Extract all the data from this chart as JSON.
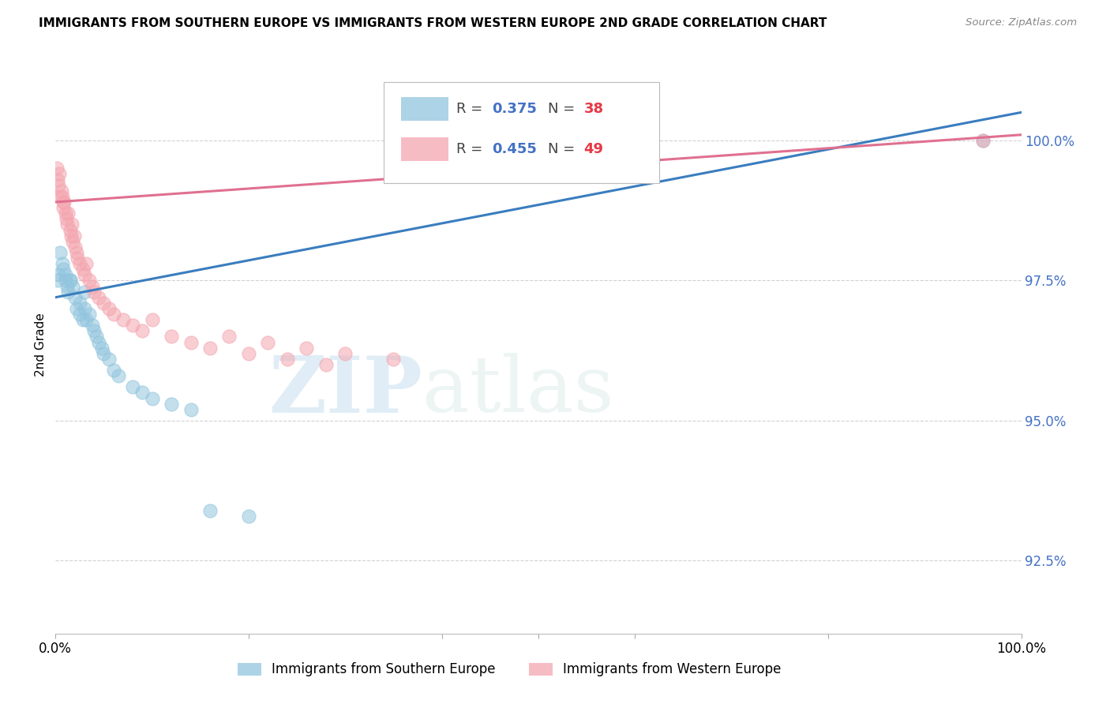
{
  "title": "IMMIGRANTS FROM SOUTHERN EUROPE VS IMMIGRANTS FROM WESTERN EUROPE 2ND GRADE CORRELATION CHART",
  "source": "Source: ZipAtlas.com",
  "ylabel": "2nd Grade",
  "y_ticks": [
    92.5,
    95.0,
    97.5,
    100.0
  ],
  "y_tick_labels": [
    "92.5%",
    "95.0%",
    "97.5%",
    "100.0%"
  ],
  "xlim": [
    0.0,
    1.0
  ],
  "ylim": [
    91.2,
    101.5
  ],
  "legend_blue_R": "0.375",
  "legend_blue_N": "38",
  "legend_pink_R": "0.455",
  "legend_pink_N": "49",
  "blue_label": "Immigrants from Southern Europe",
  "pink_label": "Immigrants from Western Europe",
  "blue_color": "#92c5de",
  "pink_color": "#f4a6b0",
  "blue_line_color": "#3a7dbf",
  "pink_line_color": "#e07090",
  "watermark_zip": "ZIP",
  "watermark_atlas": "atlas",
  "blue_scatter_x": [
    0.002,
    0.003,
    0.005,
    0.007,
    0.008,
    0.01,
    0.01,
    0.012,
    0.013,
    0.015,
    0.015,
    0.018,
    0.02,
    0.022,
    0.025,
    0.025,
    0.028,
    0.03,
    0.03,
    0.032,
    0.035,
    0.038,
    0.04,
    0.042,
    0.045,
    0.048,
    0.05,
    0.055,
    0.06,
    0.065,
    0.08,
    0.09,
    0.1,
    0.12,
    0.14,
    0.16,
    0.2,
    0.96
  ],
  "blue_scatter_y": [
    97.5,
    97.6,
    98.0,
    97.8,
    97.7,
    97.5,
    97.6,
    97.4,
    97.3,
    97.5,
    97.5,
    97.4,
    97.2,
    97.0,
    97.1,
    96.9,
    96.8,
    97.3,
    97.0,
    96.8,
    96.9,
    96.7,
    96.6,
    96.5,
    96.4,
    96.3,
    96.2,
    96.1,
    95.9,
    95.8,
    95.6,
    95.5,
    95.4,
    95.3,
    95.2,
    93.4,
    93.3,
    100.0
  ],
  "pink_scatter_x": [
    0.001,
    0.002,
    0.003,
    0.004,
    0.005,
    0.006,
    0.007,
    0.008,
    0.008,
    0.009,
    0.01,
    0.011,
    0.012,
    0.013,
    0.015,
    0.016,
    0.017,
    0.018,
    0.019,
    0.02,
    0.022,
    0.023,
    0.025,
    0.028,
    0.03,
    0.032,
    0.035,
    0.038,
    0.04,
    0.045,
    0.05,
    0.055,
    0.06,
    0.07,
    0.08,
    0.09,
    0.1,
    0.12,
    0.14,
    0.16,
    0.18,
    0.2,
    0.22,
    0.24,
    0.26,
    0.28,
    0.3,
    0.35,
    0.96
  ],
  "pink_scatter_y": [
    99.5,
    99.3,
    99.2,
    99.4,
    99.0,
    99.1,
    99.0,
    98.9,
    98.8,
    98.9,
    98.7,
    98.6,
    98.5,
    98.7,
    98.4,
    98.3,
    98.5,
    98.2,
    98.3,
    98.1,
    98.0,
    97.9,
    97.8,
    97.7,
    97.6,
    97.8,
    97.5,
    97.4,
    97.3,
    97.2,
    97.1,
    97.0,
    96.9,
    96.8,
    96.7,
    96.6,
    96.8,
    96.5,
    96.4,
    96.3,
    96.5,
    96.2,
    96.4,
    96.1,
    96.3,
    96.0,
    96.2,
    96.1,
    100.0
  ],
  "blue_trendline_x": [
    0.0,
    1.0
  ],
  "blue_trendline_y": [
    97.2,
    100.5
  ],
  "pink_trendline_x": [
    0.0,
    1.0
  ],
  "pink_trendline_y": [
    98.9,
    100.1
  ]
}
